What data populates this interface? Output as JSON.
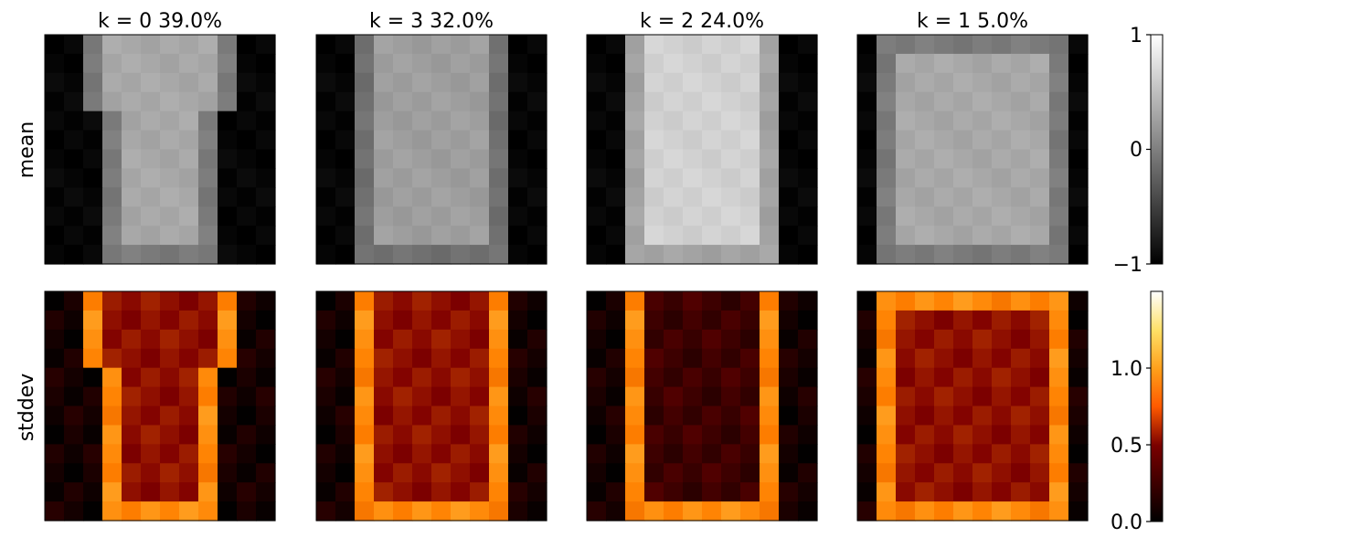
{
  "chart_data": {
    "type": "heatmap",
    "panels": [
      {
        "k": "0",
        "weight": "39.0%",
        "shape": "tshirt"
      },
      {
        "k": "3",
        "weight": "32.0%",
        "shape": "longsleeve"
      },
      {
        "k": "2",
        "weight": "24.0%",
        "shape": "shirt_bright"
      },
      {
        "k": "1",
        "weight": "5.0%",
        "shape": "pullover"
      }
    ],
    "rows": [
      "mean",
      "stddev"
    ],
    "grid_size": [
      12,
      12
    ],
    "colorbars": [
      {
        "name": "mean",
        "cmap": "gray",
        "range": [
          -1,
          1
        ],
        "tick_labels": [
          "1",
          "0",
          "−1"
        ],
        "ticks": [
          1,
          0,
          -1
        ]
      },
      {
        "name": "stddev",
        "cmap": "afmhot",
        "range": [
          0,
          1.5
        ],
        "tick_labels": [
          "1.0",
          "0.5",
          "0.0"
        ],
        "ticks": [
          1.0,
          0.5,
          0.0
        ]
      }
    ]
  }
}
